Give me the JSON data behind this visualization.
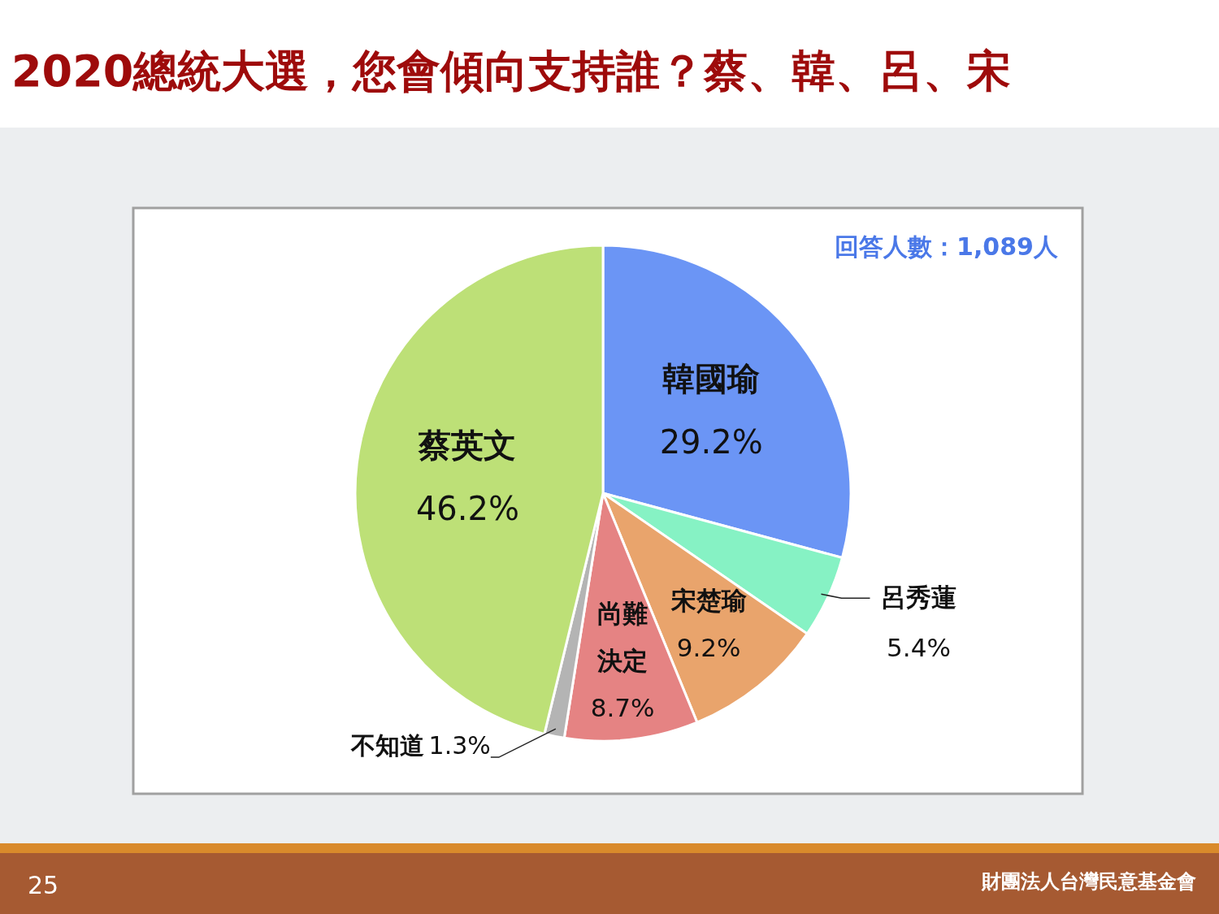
{
  "chart_data": {
    "type": "pie",
    "title": "2020總統大選，您會傾向支持誰？蔡、韓、呂、宋",
    "categories": [
      "韓國瑜",
      "呂秀蓮",
      "宋楚瑜",
      "尚難決定",
      "不知道",
      "蔡英文"
    ],
    "values": [
      29.2,
      5.4,
      9.2,
      8.7,
      1.3,
      46.2
    ],
    "value_labels": [
      "29.2%",
      "5.4%",
      "9.2%",
      "8.7%",
      "1.3%",
      "46.2%"
    ],
    "colors": [
      "#6b95f5",
      "#86f2c4",
      "#e9a46c",
      "#e58383",
      "#b4b4b4",
      "#bde077"
    ],
    "annotations": [
      "回答人數：1,089人",
      "25",
      "財團法人台灣民意基金會"
    ]
  }
}
